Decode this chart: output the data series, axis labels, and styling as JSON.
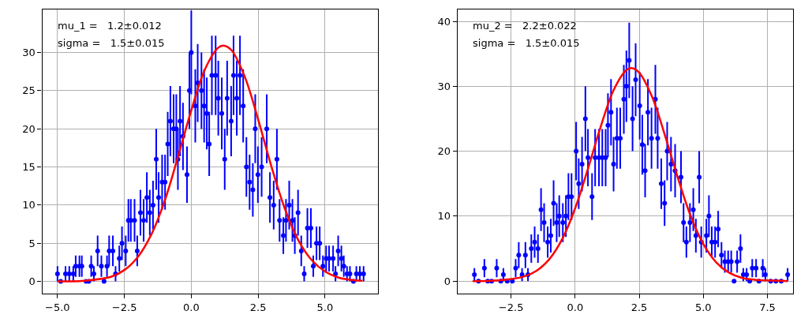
{
  "chart_data": [
    {
      "type": "scatter",
      "grid": true,
      "annotations": [
        "mu_1 =   1.2±0.012",
        "sigma =   1.5±0.015"
      ],
      "xlim": [
        -5.57,
        6.97
      ],
      "ylim": [
        -1.6,
        35.6
      ],
      "xticks": [
        {
          "value": -5.0,
          "label": "−5.0"
        },
        {
          "value": -2.5,
          "label": "−2.5"
        },
        {
          "value": 0.0,
          "label": "0.0"
        },
        {
          "value": 2.5,
          "label": "2.5"
        },
        {
          "value": 5.0,
          "label": "5.0"
        }
      ],
      "yticks": [
        0,
        5,
        10,
        15,
        20,
        25,
        30
      ],
      "series": [
        {
          "marker": "circle",
          "color": "#0000ff",
          "x": [
            -5.0,
            -4.88,
            -4.7,
            -4.56,
            -4.41,
            -4.32,
            -4.18,
            -4.09,
            -3.93,
            -3.83,
            -3.74,
            -3.64,
            -3.5,
            -3.36,
            -3.26,
            -3.15,
            -3.07,
            -2.93,
            -2.83,
            -2.69,
            -2.59,
            -2.45,
            -2.35,
            -2.26,
            -2.12,
            -2.02,
            -1.9,
            -1.78,
            -1.66,
            -1.55,
            -1.43,
            -1.31,
            -1.22,
            -1.09,
            -0.98,
            -0.88,
            -0.78,
            -0.66,
            -0.56,
            -0.5,
            -0.42,
            -0.31,
            -0.16,
            -0.07,
            0.0,
            0.15,
            0.24,
            0.38,
            0.48,
            0.58,
            0.67,
            0.77,
            0.91,
            1.01,
            1.14,
            1.25,
            1.34,
            1.49,
            1.58,
            1.7,
            1.82,
            1.94,
            2.06,
            2.18,
            2.3,
            2.39,
            2.49,
            2.63,
            2.82,
            2.94,
            3.08,
            3.2,
            3.3,
            3.44,
            3.54,
            3.66,
            3.78,
            3.87,
            3.99,
            4.11,
            4.22,
            4.34,
            4.47,
            4.56,
            4.68,
            4.8,
            4.92,
            5.04,
            5.15,
            5.3,
            5.39,
            5.49,
            5.61,
            5.7,
            5.82,
            5.93,
            6.06,
            6.17,
            6.3,
            6.44
          ],
          "values": [
            1,
            0,
            1,
            1,
            1,
            2,
            2,
            2,
            0,
            0,
            2,
            1,
            4,
            2,
            0,
            2,
            4,
            4,
            1,
            3,
            5,
            4,
            8,
            8,
            8,
            4,
            9,
            8,
            11,
            9,
            10,
            16,
            11,
            13,
            13,
            18,
            21,
            20,
            20,
            16,
            21,
            19,
            14,
            25,
            30,
            23,
            26,
            25,
            23,
            22,
            18,
            27,
            27,
            24,
            22,
            16,
            24,
            21,
            27,
            24,
            27,
            23,
            15,
            13,
            12,
            20,
            14,
            15,
            20,
            11,
            10,
            16,
            8,
            6,
            8,
            10,
            8,
            6,
            9,
            4,
            1,
            7,
            7,
            2,
            5,
            5,
            2,
            3,
            3,
            3,
            1,
            4,
            3,
            2,
            1,
            1,
            0,
            1,
            1,
            1
          ],
          "errors": [
            1,
            null,
            1,
            1,
            1,
            1.4,
            1.4,
            1.4,
            null,
            null,
            1.4,
            1,
            2,
            1.4,
            null,
            1.4,
            2,
            2,
            1,
            1.7,
            2.2,
            2,
            2.8,
            2.8,
            2.8,
            2,
            3,
            2.8,
            3.3,
            3,
            3.2,
            4,
            3.3,
            3.6,
            3.6,
            4.2,
            4.6,
            4.5,
            4.5,
            4,
            4.6,
            4.4,
            3.7,
            5,
            5.5,
            4.8,
            5.1,
            5,
            4.8,
            4.7,
            4.2,
            5.2,
            5.2,
            4.9,
            4.7,
            4,
            4.9,
            4.6,
            5.2,
            4.9,
            5.2,
            4.8,
            3.9,
            3.6,
            3.5,
            4.5,
            3.7,
            3.9,
            4.5,
            3.3,
            3.2,
            4,
            2.8,
            2.4,
            2.8,
            3.2,
            2.8,
            2.4,
            3,
            2,
            1,
            2.6,
            2.6,
            1.4,
            2.2,
            2.2,
            1.4,
            1.7,
            1.7,
            1.7,
            1,
            2,
            1.7,
            1.4,
            1,
            1,
            null,
            1,
            1,
            1
          ]
        },
        {
          "type": "line",
          "color": "#ff0000",
          "x": [
            -5,
            -4,
            -3,
            -2.5,
            -2,
            -1.5,
            -1,
            -0.5,
            0,
            0.5,
            1,
            1.2,
            1.5,
            2,
            2.5,
            3,
            3.5,
            4,
            4.5,
            5,
            5.5,
            6,
            6.4
          ],
          "values": [
            0,
            0.1,
            0.6,
            1.5,
            3.2,
            6.1,
            10.5,
            16.3,
            22.4,
            27.7,
            30.6,
            30.9,
            30.3,
            26.8,
            21.2,
            15,
            9.5,
            5.4,
            2.8,
            1.3,
            0.5,
            0.2,
            0.1
          ]
        }
      ]
    },
    {
      "type": "scatter",
      "grid": true,
      "annotations": [
        "mu_2 =   2.2±0.022",
        "sigma =   1.5±0.015"
      ],
      "xlim": [
        -4.59,
        8.5
      ],
      "ylim": [
        -1.94,
        41.8
      ],
      "xticks": [
        {
          "value": -2.5,
          "label": "−2.5"
        },
        {
          "value": 0.0,
          "label": "0.0"
        },
        {
          "value": 2.5,
          "label": "2.5"
        },
        {
          "value": 5.0,
          "label": "5.0"
        },
        {
          "value": 7.5,
          "label": "7.5"
        }
      ],
      "yticks": [
        0,
        10,
        20,
        30,
        40
      ],
      "series": [
        {
          "marker": "circle",
          "color": "#0000ff",
          "x": [
            -3.93,
            -3.77,
            -3.54,
            -3.41,
            -3.26,
            -3.06,
            -2.9,
            -2.8,
            -2.65,
            -2.45,
            -2.32,
            -2.2,
            -2.07,
            -1.94,
            -1.84,
            -1.71,
            -1.58,
            -1.45,
            -1.33,
            -1.21,
            -1.07,
            -0.95,
            -0.84,
            -0.72,
            -0.62,
            -0.48,
            -0.36,
            -0.26,
            -0.14,
            0.04,
            0.14,
            0.27,
            0.4,
            0.5,
            0.66,
            0.78,
            0.93,
            1.06,
            1.19,
            1.28,
            1.4,
            1.5,
            1.63,
            1.76,
            1.9,
            2.0,
            2.11,
            2.24,
            2.36,
            2.52,
            2.62,
            2.73,
            2.84,
            2.98,
            3.13,
            3.22,
            3.36,
            3.49,
            3.59,
            3.74,
            3.9,
            4.13,
            4.23,
            4.34,
            4.48,
            4.61,
            4.71,
            4.84,
            4.92,
            5.12,
            5.22,
            5.33,
            5.46,
            5.58,
            5.71,
            5.84,
            5.97,
            6.09,
            6.2,
            6.32,
            6.45,
            6.56,
            6.69,
            6.81,
            6.91,
            7.06,
            7.17,
            7.32,
            7.42,
            7.63,
            7.83,
            8.04,
            8.29
          ],
          "values": [
            1,
            0,
            2,
            0,
            0,
            2,
            0,
            1,
            0,
            0,
            2,
            4,
            1,
            4,
            1,
            5,
            6,
            5,
            11,
            9,
            6,
            7,
            12,
            9,
            10,
            9,
            10,
            13,
            13,
            20,
            15,
            18,
            25,
            19,
            13,
            19,
            19,
            19,
            19,
            24,
            26,
            18,
            22,
            22,
            28,
            30,
            34,
            25,
            31,
            27,
            21,
            17,
            26,
            22,
            28,
            22,
            15,
            12,
            20,
            18,
            17,
            16,
            9,
            6,
            9,
            11,
            7,
            16,
            6,
            7,
            10,
            6,
            6,
            8,
            4,
            3,
            3,
            3,
            0,
            3,
            5,
            1,
            1,
            0,
            2,
            2,
            0,
            2,
            1,
            0,
            0,
            0,
            1
          ],
          "errors": [
            1,
            null,
            1.4,
            null,
            null,
            1.4,
            null,
            1,
            null,
            null,
            1.4,
            2,
            1,
            2,
            1,
            2.2,
            2.4,
            2.2,
            3.3,
            3,
            2.4,
            2.6,
            3.5,
            3,
            3.2,
            3,
            3.2,
            3.6,
            3.6,
            4.5,
            3.9,
            4.2,
            5,
            4.4,
            3.6,
            4.4,
            4.4,
            4.4,
            4.4,
            4.9,
            5.1,
            4.2,
            4.7,
            4.7,
            5.3,
            5.5,
            5.8,
            5,
            5.6,
            5.2,
            4.6,
            4.1,
            5.1,
            4.7,
            5.3,
            4.7,
            3.9,
            3.5,
            4.5,
            4.2,
            4.1,
            4,
            3,
            2.4,
            3,
            3.3,
            2.6,
            4,
            2.4,
            2.6,
            3.2,
            2.4,
            2.4,
            2.8,
            2,
            1.7,
            1.7,
            1.7,
            null,
            1.7,
            2.2,
            1,
            1,
            null,
            1.4,
            1.4,
            null,
            1.4,
            1,
            null,
            null,
            null,
            1
          ]
        },
        {
          "type": "line",
          "color": "#ff0000",
          "x": [
            -4,
            -3,
            -2,
            -1.5,
            -1,
            -0.5,
            0,
            0.5,
            1,
            1.5,
            2,
            2.2,
            2.5,
            3,
            3.5,
            4,
            4.5,
            5,
            5.5,
            6,
            6.5,
            7,
            7.5,
            8.3
          ],
          "values": [
            0,
            0.1,
            0.7,
            1.6,
            3.4,
            6.5,
            11.2,
            17.3,
            23.8,
            29.4,
            32.5,
            32.8,
            32.1,
            28.4,
            22.5,
            16,
            10.1,
            5.7,
            2.9,
            1.3,
            0.5,
            0.2,
            0.1,
            0
          ]
        }
      ]
    }
  ]
}
